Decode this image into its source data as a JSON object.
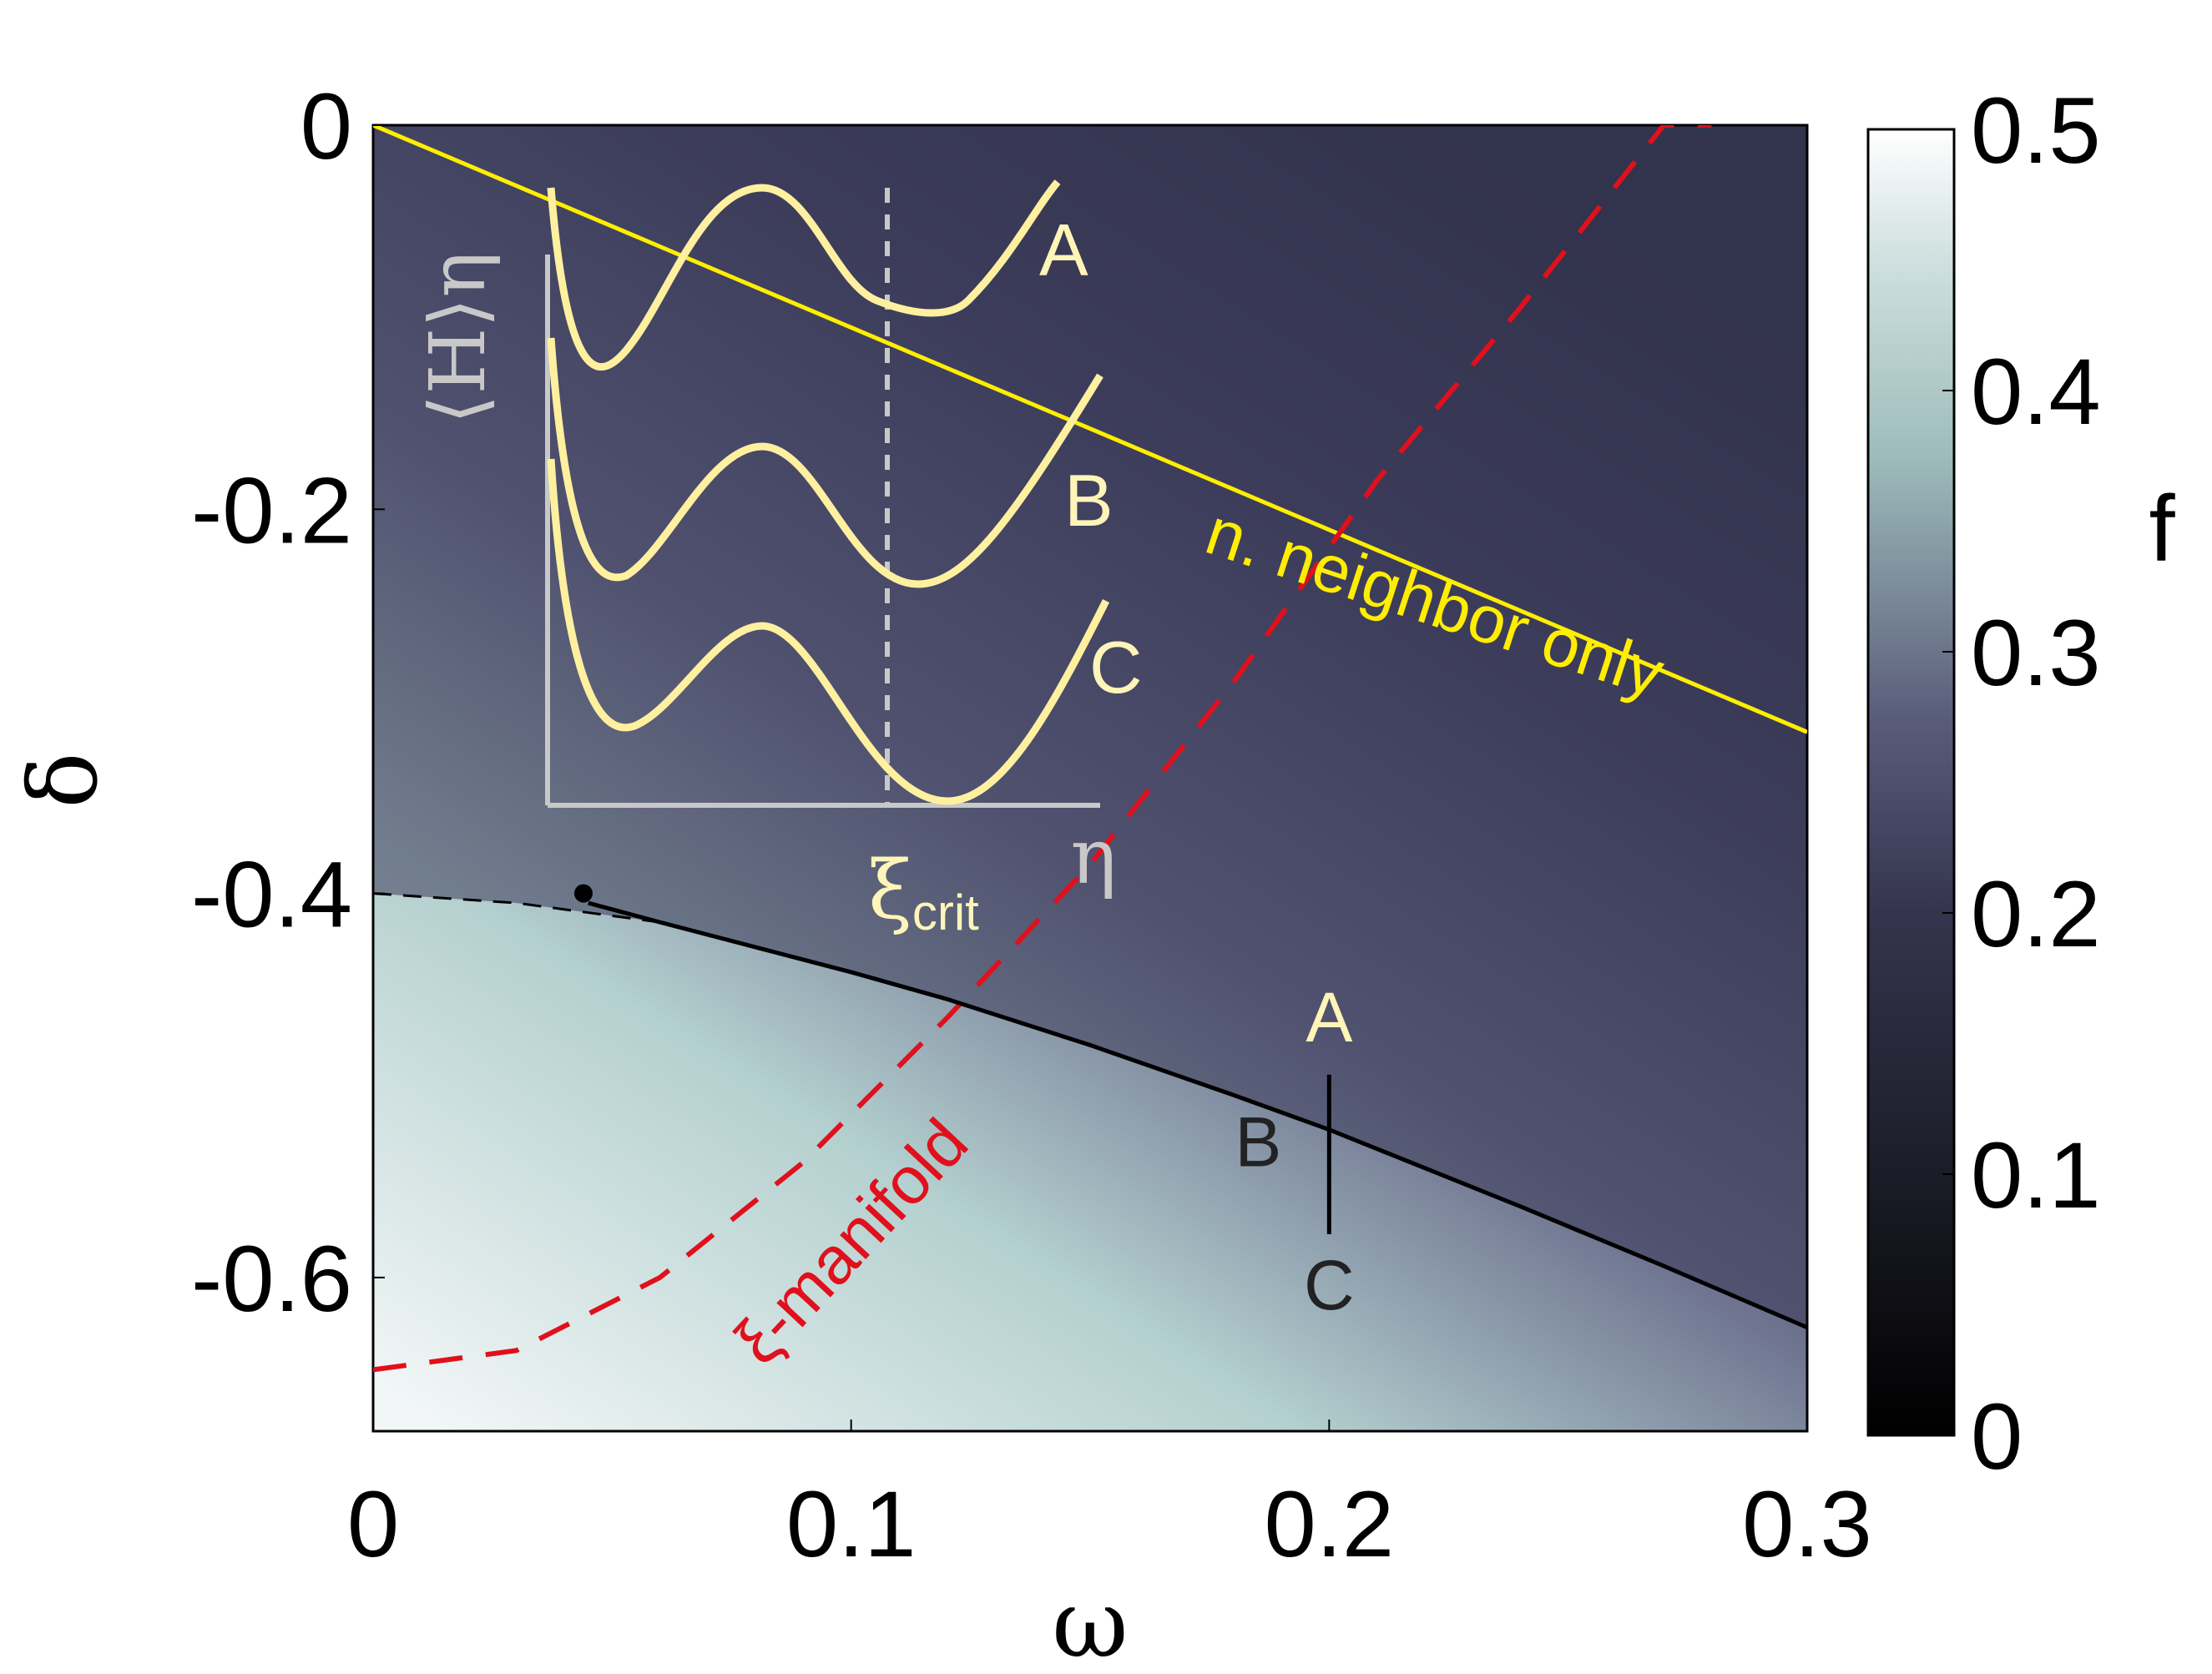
{
  "chart_data": {
    "type": "heatmap",
    "xlabel": "ω",
    "ylabel": "δ",
    "xlim": [
      0,
      0.3
    ],
    "ylim": [
      -0.68,
      0
    ],
    "x_ticks": [
      "0",
      "0.1",
      "0.2",
      "0.3"
    ],
    "x_tick_values": [
      0,
      0.1,
      0.2,
      0.3
    ],
    "y_ticks": [
      "0",
      "-0.2",
      "-0.4",
      "-0.6"
    ],
    "y_tick_values": [
      0,
      -0.2,
      -0.4,
      -0.6
    ],
    "colorbar": {
      "label": "f",
      "range": [
        0,
        0.5
      ],
      "ticks": [
        "0",
        "0.1",
        "0.2",
        "0.3",
        "0.4",
        "0.5"
      ],
      "tick_values": [
        0,
        0.1,
        0.2,
        0.3,
        0.4,
        0.5
      ],
      "colors": [
        "#000000",
        "#1a1a24",
        "#2f2f48",
        "#5c5e7c",
        "#8fabad",
        "#b7d2d0",
        "#ffffff"
      ]
    },
    "field_description_values": {
      "upper_region_f": [
        0.17,
        0.2
      ],
      "lower_region_f": [
        0.36,
        0.47
      ]
    },
    "series": [
      {
        "name": "n. neighbor only",
        "style": "solid",
        "color": "#ffee00",
        "x": [
          0,
          0.3
        ],
        "y": [
          0,
          -0.316
        ]
      },
      {
        "name": "ξ-manifold",
        "style": "dashed",
        "color": "#e0101c",
        "x": [
          0,
          0.03,
          0.06,
          0.09,
          0.12,
          0.15,
          0.18,
          0.21,
          0.24,
          0.27,
          0.28
        ],
        "y": [
          -0.648,
          -0.638,
          -0.6,
          -0.54,
          -0.465,
          -0.385,
          -0.29,
          -0.185,
          -0.095,
          0.0,
          0.0
        ]
      },
      {
        "style": "solid",
        "color": "#000000",
        "x": [
          0.045,
          0.06,
          0.08,
          0.1,
          0.12,
          0.15,
          0.18,
          0.2,
          0.24,
          0.27,
          0.3
        ],
        "y": [
          -0.405,
          -0.415,
          -0.428,
          -0.441,
          -0.455,
          -0.479,
          -0.505,
          -0.523,
          -0.563,
          -0.594,
          -0.626
        ]
      },
      {
        "style": "dashed",
        "color": "#000000",
        "x": [
          0,
          0.03,
          0.06,
          0.08
        ],
        "y": [
          -0.4,
          -0.405,
          -0.415,
          -0.428
        ]
      }
    ],
    "points": [
      {
        "label": "A",
        "x": 0.2,
        "y": -0.477,
        "color": "#fff5b8"
      },
      {
        "label": "B",
        "x": 0.2,
        "y": -0.542,
        "color": "#222222"
      },
      {
        "label": "C",
        "x": 0.2,
        "y": -0.56,
        "color": "#222222"
      }
    ],
    "critical_point": {
      "x": 0.044,
      "y": -0.4
    },
    "annotations": {
      "nn_text": "n. neighbor only",
      "manifold_text": "ξ-manifold"
    },
    "inset": {
      "ylabel": "⟨H⟩η",
      "xlabel": "η",
      "xi_label": "ξ",
      "xi_sub": "crit",
      "curves": [
        "A",
        "B",
        "C"
      ]
    }
  }
}
